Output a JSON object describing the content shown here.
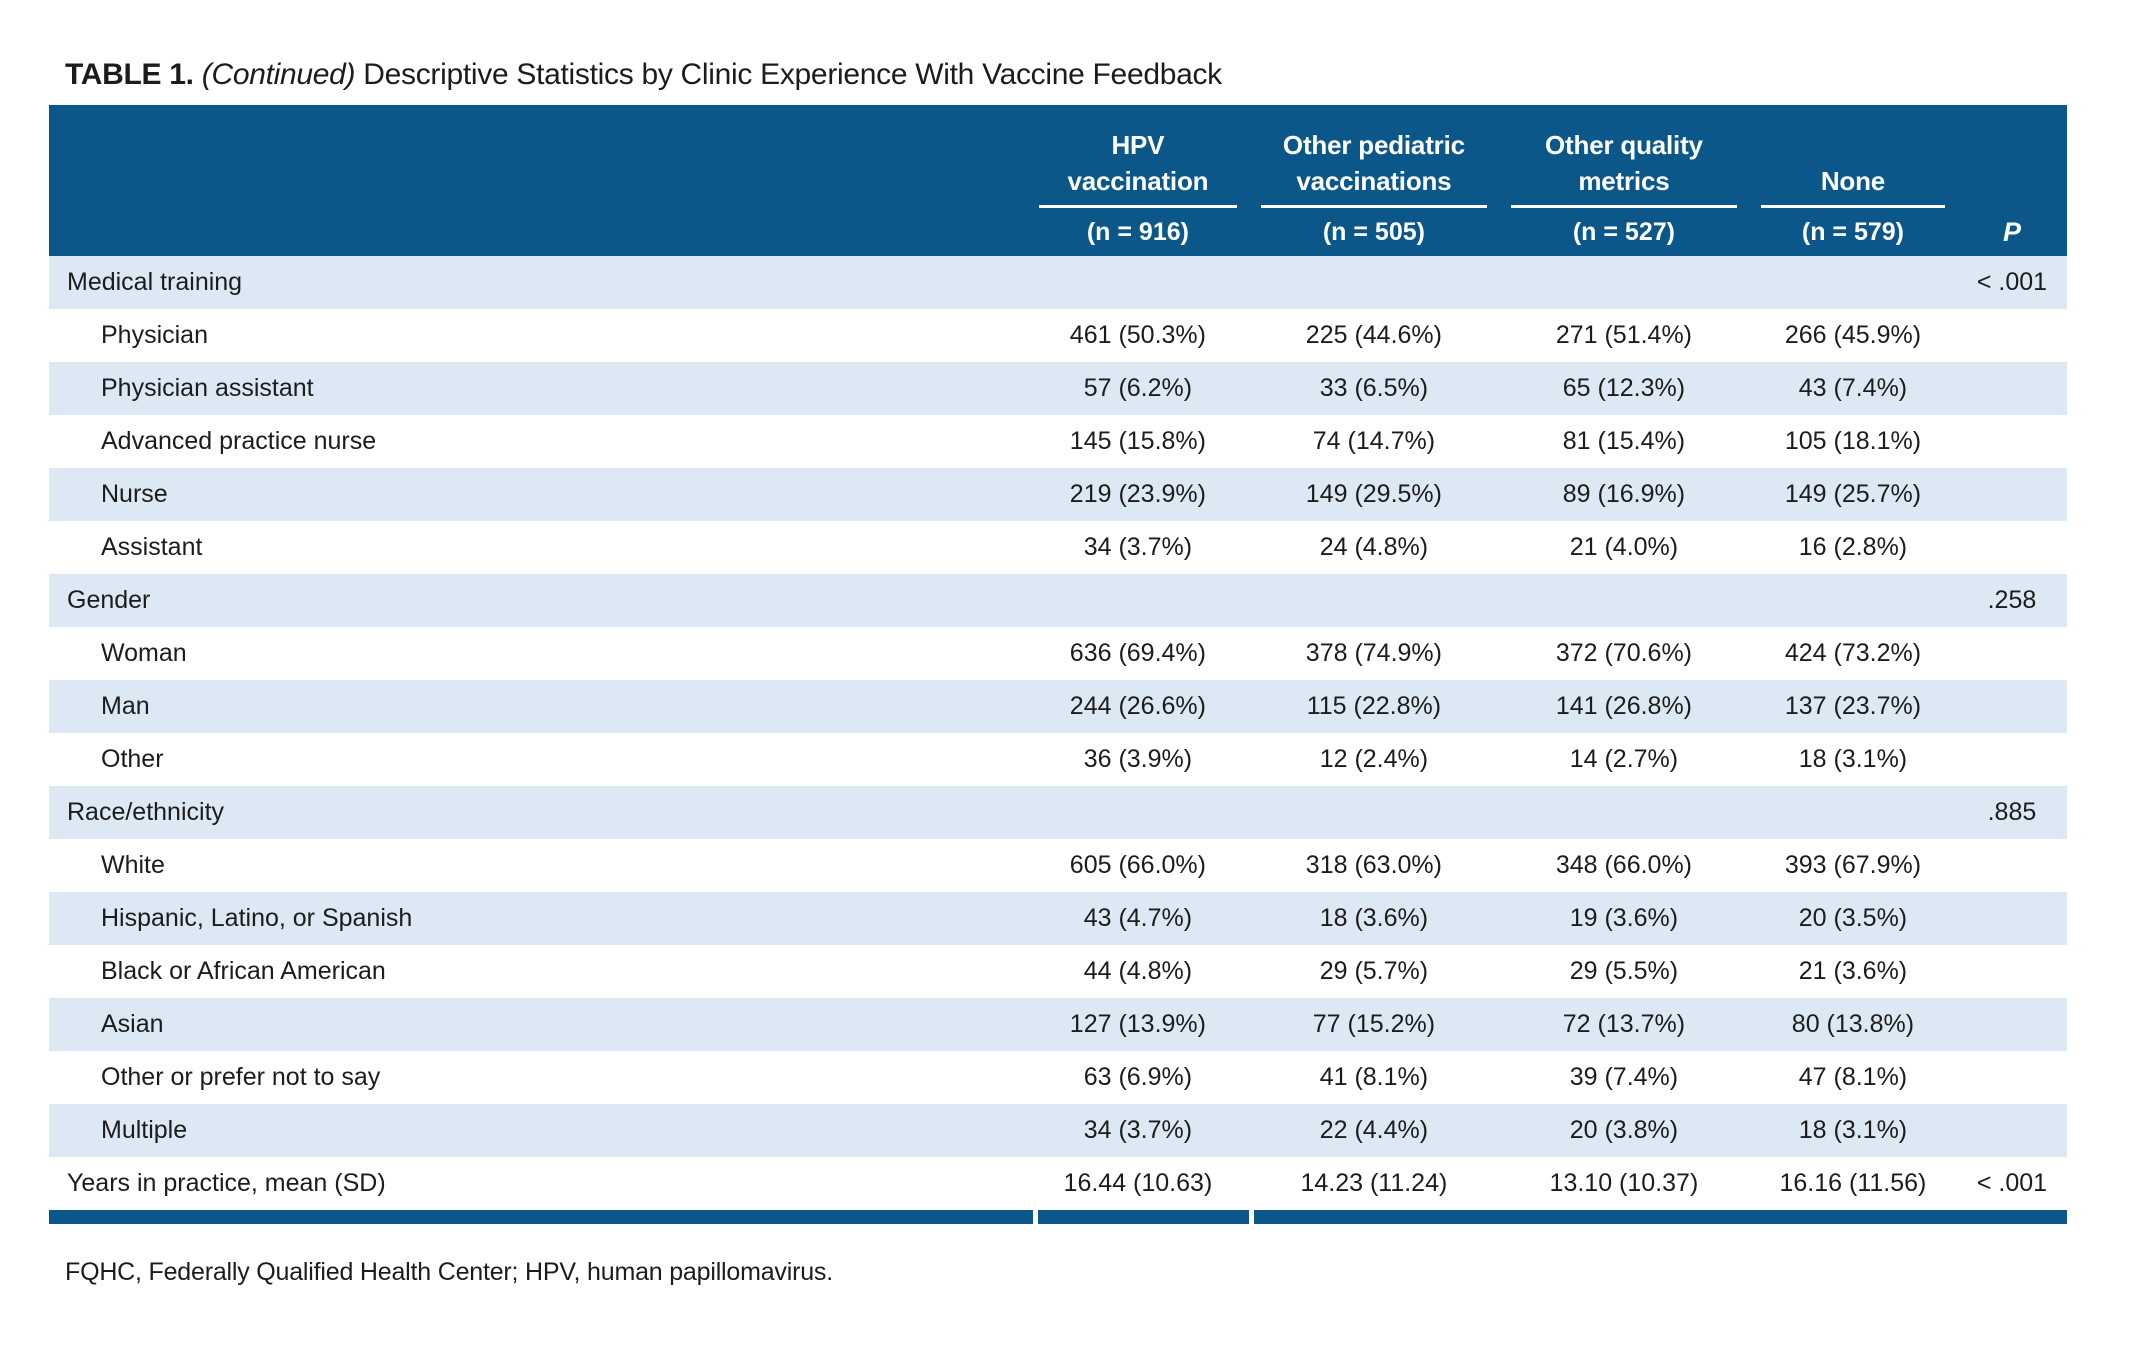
{
  "colors": {
    "header_bg": "#0b578a",
    "row_shade": "#dce8f4",
    "text": "#1c1c1c"
  },
  "title": {
    "number": "TABLE 1.",
    "continued": "(Continued)",
    "caption": "Descriptive Statistics by Clinic Experience With Vaccine Feedback"
  },
  "table": {
    "p_header": "P",
    "columns": [
      {
        "lines": [
          "HPV",
          "vaccination"
        ],
        "n": "(n = 916)"
      },
      {
        "lines": [
          "Other pediatric",
          "vaccinations"
        ],
        "n": "(n = 505)"
      },
      {
        "lines": [
          "Other quality",
          "metrics"
        ],
        "n": "(n = 527)"
      },
      {
        "lines": [
          "None"
        ],
        "n": "(n = 579)"
      }
    ],
    "rows": [
      {
        "label": "Medical training",
        "indent": false,
        "values": [
          "",
          "",
          "",
          ""
        ],
        "p": "< .001"
      },
      {
        "label": "Physician",
        "indent": true,
        "values": [
          "461 (50.3%)",
          "225 (44.6%)",
          "271 (51.4%)",
          "266 (45.9%)"
        ],
        "p": ""
      },
      {
        "label": "Physician assistant",
        "indent": true,
        "values": [
          "57 (6.2%)",
          "33 (6.5%)",
          "65 (12.3%)",
          "43 (7.4%)"
        ],
        "p": ""
      },
      {
        "label": "Advanced practice nurse",
        "indent": true,
        "values": [
          "145 (15.8%)",
          "74 (14.7%)",
          "81 (15.4%)",
          "105 (18.1%)"
        ],
        "p": ""
      },
      {
        "label": "Nurse",
        "indent": true,
        "values": [
          "219 (23.9%)",
          "149 (29.5%)",
          "89 (16.9%)",
          "149 (25.7%)"
        ],
        "p": ""
      },
      {
        "label": "Assistant",
        "indent": true,
        "values": [
          "34 (3.7%)",
          "24 (4.8%)",
          "21 (4.0%)",
          "16 (2.8%)"
        ],
        "p": ""
      },
      {
        "label": "Gender",
        "indent": false,
        "values": [
          "",
          "",
          "",
          ""
        ],
        "p": ".258"
      },
      {
        "label": "Woman",
        "indent": true,
        "values": [
          "636 (69.4%)",
          "378 (74.9%)",
          "372 (70.6%)",
          "424 (73.2%)"
        ],
        "p": ""
      },
      {
        "label": "Man",
        "indent": true,
        "values": [
          "244 (26.6%)",
          "115 (22.8%)",
          "141 (26.8%)",
          "137 (23.7%)"
        ],
        "p": ""
      },
      {
        "label": "Other",
        "indent": true,
        "values": [
          "36 (3.9%)",
          "12 (2.4%)",
          "14 (2.7%)",
          "18 (3.1%)"
        ],
        "p": ""
      },
      {
        "label": "Race/ethnicity",
        "indent": false,
        "values": [
          "",
          "",
          "",
          ""
        ],
        "p": ".885"
      },
      {
        "label": "White",
        "indent": true,
        "values": [
          "605 (66.0%)",
          "318 (63.0%)",
          "348 (66.0%)",
          "393 (67.9%)"
        ],
        "p": ""
      },
      {
        "label": "Hispanic, Latino, or Spanish",
        "indent": true,
        "values": [
          "43 (4.7%)",
          "18 (3.6%)",
          "19 (3.6%)",
          "20 (3.5%)"
        ],
        "p": ""
      },
      {
        "label": "Black or African American",
        "indent": true,
        "values": [
          "44 (4.8%)",
          "29 (5.7%)",
          "29 (5.5%)",
          "21 (3.6%)"
        ],
        "p": ""
      },
      {
        "label": "Asian",
        "indent": true,
        "values": [
          "127 (13.9%)",
          "77 (15.2%)",
          "72 (13.7%)",
          "80 (13.8%)"
        ],
        "p": ""
      },
      {
        "label": "Other or prefer not to say",
        "indent": true,
        "values": [
          "63 (6.9%)",
          "41 (8.1%)",
          "39 (7.4%)",
          "47 (8.1%)"
        ],
        "p": ""
      },
      {
        "label": "Multiple",
        "indent": true,
        "values": [
          "34 (3.7%)",
          "22 (4.4%)",
          "20 (3.8%)",
          "18 (3.1%)"
        ],
        "p": ""
      },
      {
        "label": "Years in practice, mean (SD)",
        "indent": false,
        "values": [
          "16.44 (10.63)",
          "14.23 (11.24)",
          "13.10 (10.37)",
          "16.16 (11.56)"
        ],
        "p": "< .001"
      }
    ]
  },
  "footnote": "FQHC, Federally Qualified Health Center; HPV, human papillomavirus."
}
